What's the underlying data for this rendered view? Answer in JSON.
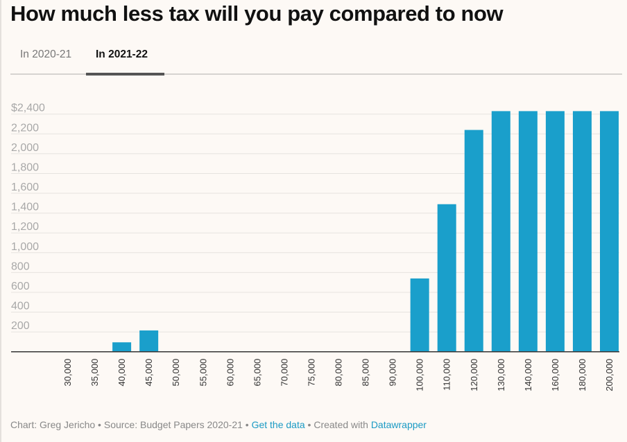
{
  "title": "How much less tax will you pay compared to now",
  "tabs": [
    {
      "label": "In 2020-21",
      "active": false
    },
    {
      "label": "In 2021-22",
      "active": true
    }
  ],
  "footer": {
    "credit": "Chart: Greg Jericho",
    "sep1": " • ",
    "source": "Source: Budget Papers 2020-21",
    "sep2": " • ",
    "data_link": "Get the data",
    "sep3": " • ",
    "created": "Created with ",
    "tool_link": "Datawrapper"
  },
  "colors": {
    "bar": "#1a9fcb",
    "link": "#1a9ac4",
    "background": "#fdf9f5"
  },
  "chart_data": {
    "type": "bar",
    "title": "How much less tax will you pay compared to now",
    "xlabel": "",
    "ylabel": "",
    "ylim": [
      0,
      2400
    ],
    "yticks": [
      200,
      400,
      600,
      800,
      1000,
      1200,
      1400,
      1600,
      1800,
      2000,
      2200,
      2400
    ],
    "ytick_labels": [
      "200",
      "400",
      "600",
      "800",
      "1,000",
      "1,200",
      "1,400",
      "1,600",
      "1,800",
      "2,000",
      "2,200",
      "$2,400"
    ],
    "grid": true,
    "legend": "none",
    "categories": [
      "30,000",
      "35,000",
      "40,000",
      "45,000",
      "50,000",
      "55,000",
      "60,000",
      "65,000",
      "70,000",
      "75,000",
      "80,000",
      "85,000",
      "90,000",
      "100,000",
      "110,000",
      "120,000",
      "130,000",
      "140,000",
      "160,000",
      "180,000",
      "200,000"
    ],
    "series": [
      {
        "name": "In 2021-22",
        "values": [
          0,
          0,
          95,
          215,
          0,
          0,
          0,
          0,
          0,
          0,
          0,
          0,
          0,
          740,
          1490,
          2240,
          2430,
          2430,
          2430,
          2430,
          2430
        ]
      }
    ]
  }
}
